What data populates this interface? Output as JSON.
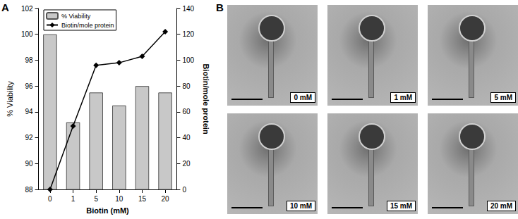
{
  "chart_data": {
    "type": "bar",
    "categories": [
      "0",
      "1",
      "5",
      "10",
      "15",
      "20"
    ],
    "series": [
      {
        "name": "% Viability",
        "type": "bar",
        "color": "#c8c8c8",
        "values": [
          100,
          93.2,
          95.5,
          94.5,
          96,
          95.5
        ]
      },
      {
        "name": "Biotin/mole protein",
        "type": "line",
        "axis": "y2",
        "color": "#000000",
        "marker": "diamond",
        "values": [
          0,
          49,
          96,
          98,
          103,
          122
        ]
      }
    ],
    "x_label": "Biotin (mM)",
    "y_label": "% Viability",
    "y2_label": "Biotin/mole protein",
    "ylim": [
      88,
      102
    ],
    "yticks": [
      88,
      90,
      92,
      94,
      96,
      98,
      100,
      102
    ],
    "y2lim": [
      0,
      140
    ],
    "y2ticks": [
      0,
      20,
      40,
      60,
      80,
      100,
      120,
      140
    ],
    "legend": "upper left",
    "grid": false
  },
  "panel_labels": [
    "A",
    "B"
  ],
  "micrograph_labels": [
    "0 mM",
    "1 mM",
    "5 mM",
    "10 mM",
    "15 mM",
    "20 mM"
  ]
}
